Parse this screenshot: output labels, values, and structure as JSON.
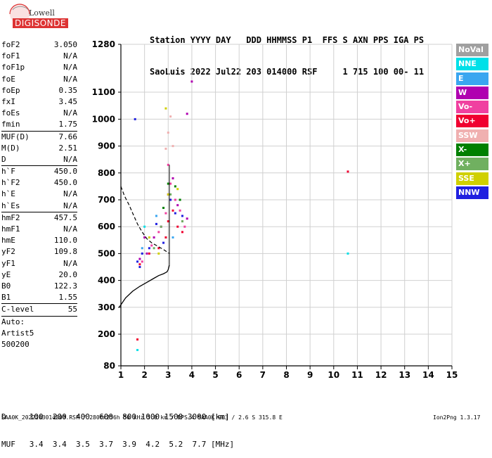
{
  "logo": {
    "line1": "Lowell",
    "line2": "DIGISONDE"
  },
  "header": {
    "line1": "Station YYYY DAY   DDD HHMMSS P1  FFS S AXN PPS IGA PS",
    "line2": "SaoLuis 2022 Jul22 203 014000 RSF     1 715 100 00- 11"
  },
  "params": [
    {
      "k": "foF2",
      "v": "3.050"
    },
    {
      "k": "foF1",
      "v": "N/A"
    },
    {
      "k": "foF1p",
      "v": "N/A"
    },
    {
      "k": "foE",
      "v": "N/A"
    },
    {
      "k": "foEp",
      "v": "0.35"
    },
    {
      "k": "fxI",
      "v": "3.45"
    },
    {
      "k": "foEs",
      "v": "N/A"
    },
    {
      "k": "fmin",
      "v": "1.75"
    },
    {
      "sep": true
    },
    {
      "k": "MUF(D)",
      "v": "7.66"
    },
    {
      "k": "M(D)",
      "v": "2.51"
    },
    {
      "k": "D",
      "v": "N/A"
    },
    {
      "sep": true
    },
    {
      "k": "h`F",
      "v": "450.0"
    },
    {
      "k": "h`F2",
      "v": "450.0"
    },
    {
      "k": "h`E",
      "v": "N/A"
    },
    {
      "k": "h`Es",
      "v": "N/A"
    },
    {
      "sep": true
    },
    {
      "k": "hmF2",
      "v": "457.5"
    },
    {
      "k": "hmF1",
      "v": "N/A"
    },
    {
      "k": "hmE",
      "v": "110.0"
    },
    {
      "k": "yF2",
      "v": "109.8"
    },
    {
      "k": "yF1",
      "v": "N/A"
    },
    {
      "k": "yE",
      "v": "20.0"
    },
    {
      "k": "B0",
      "v": "122.3"
    },
    {
      "k": "B1",
      "v": "1.55"
    },
    {
      "sep": true
    },
    {
      "k": "C-level",
      "v": "55"
    },
    {
      "sep": true
    },
    {
      "k": "Auto:",
      "v": ""
    },
    {
      "k": "Artist5",
      "v": ""
    },
    {
      "k": "500200",
      "v": ""
    }
  ],
  "legend": [
    {
      "label": "NoVal",
      "color": "#a0a0a0"
    },
    {
      "label": "NNE",
      "color": "#00e0e8"
    },
    {
      "label": "E",
      "color": "#3aa6f0"
    },
    {
      "label": "W",
      "color": "#b000b0"
    },
    {
      "label": "Vo-",
      "color": "#f040a0"
    },
    {
      "label": "Vo+",
      "color": "#f00030"
    },
    {
      "label": "SSW",
      "color": "#f0b0b0"
    },
    {
      "label": "X-",
      "color": "#008000"
    },
    {
      "label": "X+",
      "color": "#70b060"
    },
    {
      "label": "SSE",
      "color": "#d0d000"
    },
    {
      "label": "NNW",
      "color": "#2020e0"
    }
  ],
  "muf_table": {
    "row1": "D     100  200  400  600  800 1000 1500 3000 [km]",
    "row2": "MUF   3.4  3.4  3.5  3.7  3.9  4.2  5.2  7.7 [MHz]"
  },
  "footer": "SAA0K_2022203014000.RSF / 280fx256h 50 kHz 5.0 km / DPS-4 SAA0K 903 / 2.6 S 315.8 E",
  "version": "Ion2Png 1.3.17",
  "chart_data": {
    "type": "scatter",
    "xlim": [
      1,
      15
    ],
    "ylim": [
      80,
      1280
    ],
    "x_ticks": [
      1,
      2,
      3,
      4,
      5,
      6,
      7,
      8,
      9,
      10,
      11,
      12,
      13,
      14,
      15
    ],
    "y_ticks": [
      80,
      200,
      300,
      400,
      500,
      600,
      700,
      800,
      900,
      1000,
      1100,
      1280
    ],
    "grid": true,
    "series": [
      {
        "name": "NNW",
        "color": "#2020e0",
        "points": [
          [
            1.7,
            470
          ],
          [
            1.8,
            450
          ],
          [
            1.9,
            500
          ],
          [
            2.2,
            520
          ],
          [
            2.5,
            610
          ],
          [
            2.8,
            540
          ],
          [
            3.1,
            700
          ],
          [
            3.3,
            650
          ],
          [
            3.6,
            640
          ],
          [
            1.6,
            1000
          ]
        ]
      },
      {
        "name": "W",
        "color": "#b000b0",
        "points": [
          [
            1.8,
            480
          ],
          [
            2.1,
            500
          ],
          [
            2.4,
            560
          ],
          [
            2.7,
            600
          ],
          [
            3.0,
            720
          ],
          [
            3.2,
            780
          ],
          [
            3.4,
            680
          ],
          [
            3.6,
            620
          ],
          [
            3.8,
            630
          ],
          [
            4.0,
            1140
          ],
          [
            3.8,
            1020
          ],
          [
            2.0,
            560
          ]
        ]
      },
      {
        "name": "Vo-",
        "color": "#f040a0",
        "points": [
          [
            1.9,
            470
          ],
          [
            2.3,
            530
          ],
          [
            2.6,
            580
          ],
          [
            2.9,
            650
          ],
          [
            3.1,
            760
          ],
          [
            3.3,
            700
          ],
          [
            3.5,
            660
          ],
          [
            3.0,
            830
          ],
          [
            3.7,
            600
          ]
        ]
      },
      {
        "name": "Vo+",
        "color": "#f00030",
        "points": [
          [
            1.8,
            460
          ],
          [
            2.2,
            500
          ],
          [
            2.6,
            520
          ],
          [
            2.9,
            560
          ],
          [
            3.0,
            620
          ],
          [
            3.2,
            660
          ],
          [
            3.4,
            600
          ],
          [
            3.6,
            580
          ],
          [
            10.6,
            805
          ],
          [
            1.7,
            180
          ]
        ]
      },
      {
        "name": "SSW",
        "color": "#f0b0b0",
        "points": [
          [
            3.0,
            950
          ],
          [
            3.2,
            900
          ],
          [
            3.1,
            1010
          ],
          [
            2.9,
            890
          ]
        ]
      },
      {
        "name": "X-",
        "color": "#008000",
        "points": [
          [
            3.3,
            750
          ],
          [
            3.5,
            700
          ],
          [
            2.8,
            670
          ],
          [
            3.0,
            760
          ]
        ]
      },
      {
        "name": "X+",
        "color": "#70b060",
        "points": [
          [
            2.4,
            520
          ],
          [
            2.7,
            600
          ],
          [
            3.1,
            720
          ],
          [
            3.6,
            620
          ]
        ]
      },
      {
        "name": "SSE",
        "color": "#d0d000",
        "points": [
          [
            2.2,
            560
          ],
          [
            2.6,
            500
          ],
          [
            3.0,
            720
          ],
          [
            3.4,
            740
          ],
          [
            2.9,
            1040
          ]
        ]
      },
      {
        "name": "NNE",
        "color": "#00e0e8",
        "points": [
          [
            1.7,
            140
          ],
          [
            10.6,
            500
          ],
          [
            2.0,
            600
          ]
        ]
      },
      {
        "name": "E",
        "color": "#3aa6f0",
        "points": [
          [
            1.9,
            520
          ],
          [
            2.5,
            640
          ],
          [
            3.2,
            560
          ]
        ]
      }
    ],
    "profile_x": [
      0.93,
      1.2,
      1.5,
      1.8,
      2.1,
      2.4,
      2.6,
      2.8,
      2.95,
      3.0,
      3.05
    ],
    "profile_y": [
      300,
      335,
      360,
      378,
      393,
      408,
      418,
      425,
      432,
      440,
      457
    ],
    "muf_curve_x": [
      1.0,
      1.15,
      1.35,
      1.5,
      1.7,
      1.9,
      2.1,
      2.3,
      2.5,
      2.8,
      3.05
    ],
    "muf_curve_y": [
      750,
      715,
      680,
      650,
      610,
      580,
      555,
      540,
      530,
      515,
      500
    ]
  }
}
